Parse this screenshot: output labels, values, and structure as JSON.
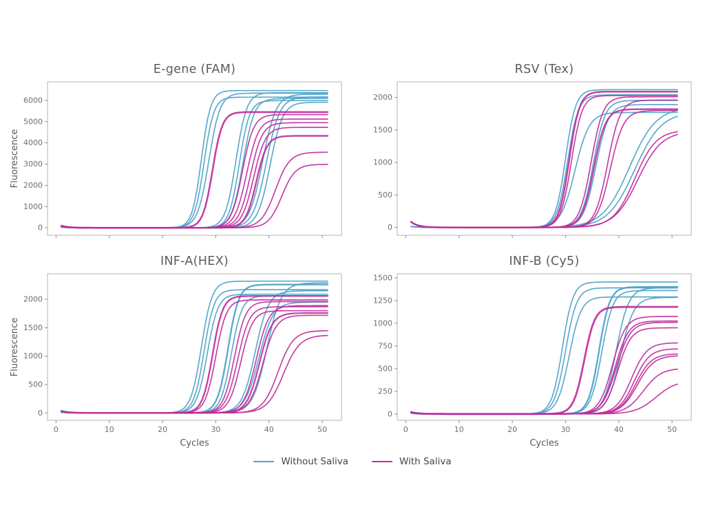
{
  "figure": {
    "colors": {
      "without_saliva": "#4BA1C6",
      "with_saliva": "#BF2B9B"
    },
    "legend": {
      "items": [
        {
          "label": "Without Saliva",
          "color_key": "without_saliva"
        },
        {
          "label": "With Saliva",
          "color_key": "with_saliva"
        }
      ]
    }
  },
  "chart_data": [
    {
      "type": "line",
      "title": "E-gene (FAM)",
      "xlabel": "",
      "ylabel": "Fluorescence",
      "xlim": [
        -1.6,
        53.6
      ],
      "ylim": [
        -350,
        6870
      ],
      "xticks": [
        0,
        10,
        20,
        30,
        40,
        50
      ],
      "yticks": [
        0,
        1000,
        2000,
        3000,
        4000,
        5000,
        6000
      ],
      "show_x_ticklabels": false,
      "x_range": [
        1,
        51
      ],
      "curve_model": "y = plateau/(1+exp(-k*(x-ct))) + bump*exp(-(x-1)/1.3)",
      "series": [
        {
          "name": "Without Saliva",
          "color_key": "without_saliva",
          "bump": 25,
          "curves": [
            {
              "ct": 27.3,
              "plateau": 6460,
              "k": 1.15
            },
            {
              "ct": 27.8,
              "plateau": 6150,
              "k": 1.1
            },
            {
              "ct": 28.7,
              "plateau": 6340,
              "k": 0.95
            },
            {
              "ct": 33.8,
              "plateau": 6360,
              "k": 1.0
            },
            {
              "ct": 34.4,
              "plateau": 5990,
              "k": 1.05
            },
            {
              "ct": 35.1,
              "plateau": 6090,
              "k": 0.95
            },
            {
              "ct": 38.8,
              "plateau": 6290,
              "k": 0.8
            },
            {
              "ct": 39.5,
              "plateau": 6160,
              "k": 0.8
            },
            {
              "ct": 40.2,
              "plateau": 5910,
              "k": 0.85
            }
          ]
        },
        {
          "name": "With Saliva",
          "color_key": "with_saliva",
          "bump": 95,
          "curves": [
            {
              "ct": 29.4,
              "plateau": 5450,
              "k": 1.1,
              "lw": 2.6
            },
            {
              "ct": 35.0,
              "plateau": 5330,
              "k": 0.95
            },
            {
              "ct": 35.8,
              "plateau": 5120,
              "k": 0.9
            },
            {
              "ct": 36.5,
              "plateau": 4950,
              "k": 0.9
            },
            {
              "ct": 37.1,
              "plateau": 4730,
              "k": 0.9
            },
            {
              "ct": 37.6,
              "plateau": 4330,
              "k": 1.0,
              "lw": 2.4
            },
            {
              "ct": 41.2,
              "plateau": 3560,
              "k": 0.75
            },
            {
              "ct": 42.4,
              "plateau": 2990,
              "k": 0.8
            }
          ]
        }
      ]
    },
    {
      "type": "line",
      "title": "RSV (Tex)",
      "xlabel": "",
      "ylabel": "",
      "xlim": [
        -1.6,
        53.6
      ],
      "ylim": [
        -120,
        2240
      ],
      "xticks": [
        0,
        10,
        20,
        30,
        40,
        50
      ],
      "yticks": [
        0,
        500,
        1000,
        1500,
        2000
      ],
      "show_x_ticklabels": false,
      "x_range": [
        1,
        51
      ],
      "curve_model": "y = plateau/(1+exp(-k*(x-ct))) + bump*exp(-(x-1)/1.3)",
      "series": [
        {
          "name": "Without Saliva",
          "color_key": "without_saliva",
          "bump": 15,
          "curves": [
            {
              "ct": 30.0,
              "plateau": 2120,
              "k": 1.05
            },
            {
              "ct": 30.4,
              "plateau": 2040,
              "k": 1.0
            },
            {
              "ct": 31.8,
              "plateau": 1770,
              "k": 0.75
            },
            {
              "ct": 35.2,
              "plateau": 1955,
              "k": 0.9
            },
            {
              "ct": 35.7,
              "plateau": 1890,
              "k": 0.85
            },
            {
              "ct": 42.0,
              "plateau": 1850,
              "k": 0.4
            },
            {
              "ct": 43.0,
              "plateau": 1780,
              "k": 0.4
            }
          ]
        },
        {
          "name": "With Saliva",
          "color_key": "with_saliva",
          "bump": 85,
          "curves": [
            {
              "ct": 30.7,
              "plateau": 2090,
              "k": 1.05,
              "lw": 2.5
            },
            {
              "ct": 31.1,
              "plateau": 2030,
              "k": 1.0
            },
            {
              "ct": 34.8,
              "plateau": 2010,
              "k": 0.9
            },
            {
              "ct": 35.3,
              "plateau": 1820,
              "k": 0.9,
              "lw": 2.3
            },
            {
              "ct": 37.9,
              "plateau": 1960,
              "k": 0.85
            },
            {
              "ct": 38.4,
              "plateau": 1800,
              "k": 0.8
            },
            {
              "ct": 43.0,
              "plateau": 1500,
              "k": 0.5
            },
            {
              "ct": 43.6,
              "plateau": 1480,
              "k": 0.45
            }
          ]
        }
      ]
    },
    {
      "type": "line",
      "title": "INF-A(HEX)",
      "xlabel": "Cycles",
      "ylabel": "Fluorescence",
      "xlim": [
        -1.6,
        53.6
      ],
      "ylim": [
        -130,
        2450
      ],
      "xticks": [
        0,
        10,
        20,
        30,
        40,
        50
      ],
      "yticks": [
        0,
        500,
        1000,
        1500,
        2000
      ],
      "show_x_ticklabels": true,
      "x_range": [
        1,
        51
      ],
      "curve_model": "y = plateau/(1+exp(-k*(x-ct))) + bump*exp(-(x-1)/1.3)",
      "series": [
        {
          "name": "Without Saliva",
          "color_key": "without_saliva",
          "bump": 12,
          "curves": [
            {
              "ct": 27.3,
              "plateau": 2320,
              "k": 1.0
            },
            {
              "ct": 27.8,
              "plateau": 2170,
              "k": 1.05
            },
            {
              "ct": 28.4,
              "plateau": 2090,
              "k": 1.0
            },
            {
              "ct": 32.3,
              "plateau": 2260,
              "k": 1.0,
              "lw": 2.4
            },
            {
              "ct": 32.9,
              "plateau": 2060,
              "k": 1.0
            },
            {
              "ct": 37.4,
              "plateau": 2150,
              "k": 0.8
            },
            {
              "ct": 38.1,
              "plateau": 1950,
              "k": 0.75
            },
            {
              "ct": 39.6,
              "plateau": 2290,
              "k": 0.75
            }
          ]
        },
        {
          "name": "With Saliva",
          "color_key": "with_saliva",
          "bump": 35,
          "curves": [
            {
              "ct": 29.4,
              "plateau": 2060,
              "k": 1.05,
              "lw": 2.4
            },
            {
              "ct": 30.0,
              "plateau": 1990,
              "k": 1.0
            },
            {
              "ct": 33.5,
              "plateau": 1960,
              "k": 0.95
            },
            {
              "ct": 34.1,
              "plateau": 1870,
              "k": 0.9
            },
            {
              "ct": 34.7,
              "plateau": 1800,
              "k": 0.9
            },
            {
              "ct": 37.6,
              "plateau": 1890,
              "k": 0.85
            },
            {
              "ct": 38.2,
              "plateau": 1760,
              "k": 0.85,
              "lw": 2.2
            },
            {
              "ct": 38.8,
              "plateau": 1720,
              "k": 0.8
            },
            {
              "ct": 41.7,
              "plateau": 1450,
              "k": 0.7
            },
            {
              "ct": 42.7,
              "plateau": 1370,
              "k": 0.65
            }
          ]
        }
      ]
    },
    {
      "type": "line",
      "title": "INF-B (Cy5)",
      "xlabel": "Cycles",
      "ylabel": "",
      "xlim": [
        -1.6,
        53.6
      ],
      "ylim": [
        -70,
        1545
      ],
      "xticks": [
        0,
        10,
        20,
        30,
        40,
        50
      ],
      "yticks": [
        0,
        250,
        500,
        750,
        1000,
        1250,
        1500
      ],
      "show_x_ticklabels": true,
      "x_range": [
        1,
        51
      ],
      "curve_model": "y = plateau/(1+exp(-k*(x-ct))) + bump*exp(-(x-1)/1.3)",
      "series": [
        {
          "name": "Without Saliva",
          "color_key": "without_saliva",
          "bump": 10,
          "curves": [
            {
              "ct": 29.4,
              "plateau": 1455,
              "k": 1.0
            },
            {
              "ct": 30.0,
              "plateau": 1390,
              "k": 0.95
            },
            {
              "ct": 30.7,
              "plateau": 1290,
              "k": 0.9
            },
            {
              "ct": 36.3,
              "plateau": 1400,
              "k": 1.0,
              "lw": 2.4
            },
            {
              "ct": 36.8,
              "plateau": 1360,
              "k": 0.95
            },
            {
              "ct": 39.5,
              "plateau": 1390,
              "k": 0.85
            },
            {
              "ct": 40.3,
              "plateau": 1285,
              "k": 0.8
            }
          ]
        },
        {
          "name": "With Saliva",
          "color_key": "with_saliva",
          "bump": 20,
          "curves": [
            {
              "ct": 33.5,
              "plateau": 1180,
              "k": 1.0,
              "lw": 2.8
            },
            {
              "ct": 38.8,
              "plateau": 1075,
              "k": 0.8
            },
            {
              "ct": 39.3,
              "plateau": 1025,
              "k": 0.8
            },
            {
              "ct": 39.5,
              "plateau": 1010,
              "k": 0.75
            },
            {
              "ct": 39.8,
              "plateau": 950,
              "k": 0.8
            },
            {
              "ct": 42.4,
              "plateau": 785,
              "k": 0.7
            },
            {
              "ct": 42.9,
              "plateau": 720,
              "k": 0.7
            },
            {
              "ct": 43.2,
              "plateau": 665,
              "k": 0.68
            },
            {
              "ct": 43.5,
              "plateau": 645,
              "k": 0.65
            },
            {
              "ct": 44.6,
              "plateau": 505,
              "k": 0.6
            },
            {
              "ct": 47.0,
              "plateau": 370,
              "k": 0.52
            }
          ]
        }
      ]
    }
  ]
}
